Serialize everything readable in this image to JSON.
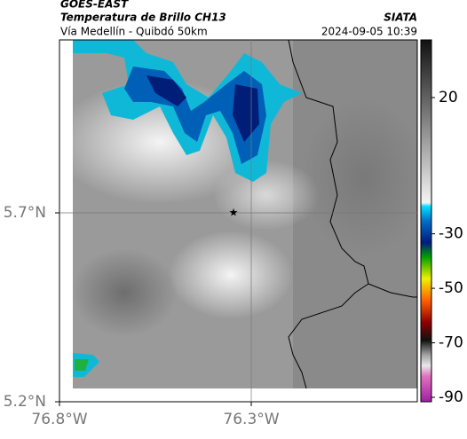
{
  "header": {
    "source": "GOES-EAST",
    "product": "Temperatura de Brillo CH13",
    "agency": "SIATA",
    "region": "Vía Medellín - Quibdó 50km",
    "datetime": "2024-09-05 10:39"
  },
  "map": {
    "lat_labels": [
      "5.7°N",
      "5.2°N"
    ],
    "lon_labels": [
      "76.8°W",
      "76.3°W"
    ]
  },
  "colorbar": {
    "ticks": [
      20,
      -30,
      -50,
      -70,
      -90
    ]
  }
}
